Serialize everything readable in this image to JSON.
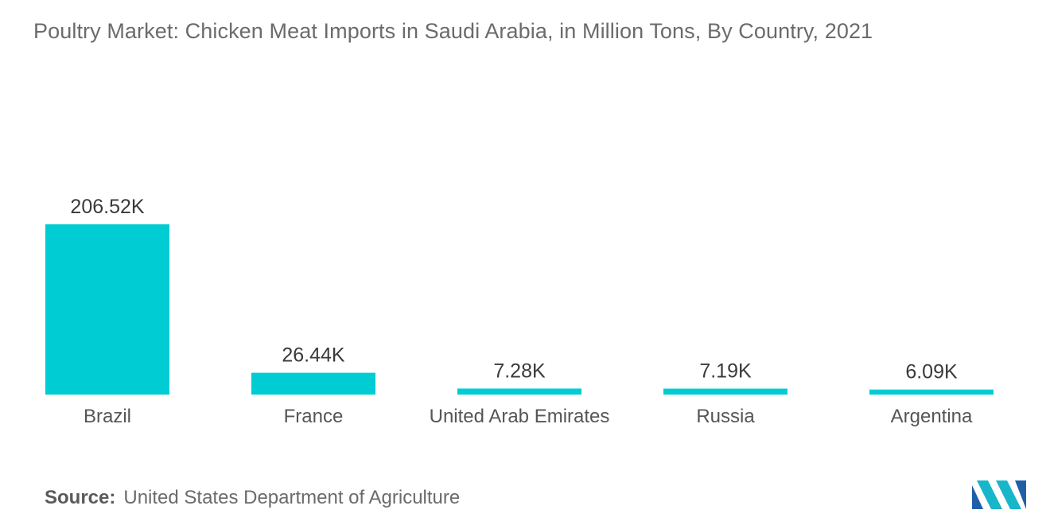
{
  "title": "Poultry Market: Chicken Meat Imports in Saudi Arabia, in Million Tons, By Country, 2021",
  "source": {
    "label": "Source:",
    "text": "United States Department of Agriculture"
  },
  "logo": {
    "icon": "mordor-intelligence-logo-icon",
    "colors": [
      "#1f5fa8",
      "#18b6c9"
    ]
  },
  "colors": {
    "bar": "#00ccd3",
    "title": "#6b6b6b",
    "label": "#3a3a3a"
  },
  "chart_data": {
    "type": "bar",
    "title": "Poultry Market: Chicken Meat Imports in Saudi Arabia, in Million Tons, By Country, 2021",
    "categories": [
      "Brazil",
      "France",
      "United Arab Emirates",
      "Russia",
      "Argentina"
    ],
    "values": [
      206520,
      26440,
      7280,
      7190,
      6090
    ],
    "data_labels": [
      "206.52K",
      "26.44K",
      "7.28K",
      "7.19K",
      "6.09K"
    ],
    "xlabel": "",
    "ylabel": "",
    "ylim": [
      0,
      206520
    ],
    "grid": false,
    "legend": "none",
    "y_axis_visible": false
  }
}
